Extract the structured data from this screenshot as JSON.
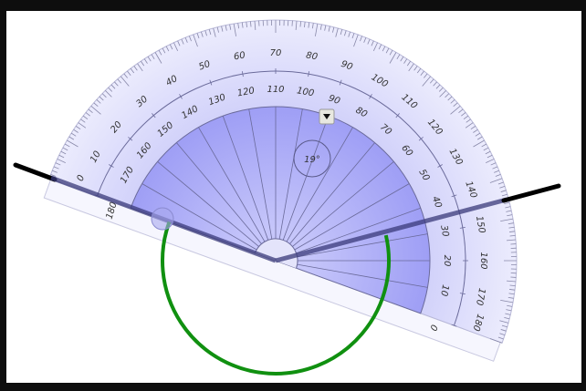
{
  "protractor": {
    "outer_labels": [
      "0",
      "10",
      "20",
      "30",
      "40",
      "50",
      "60",
      "70",
      "80",
      "90",
      "100",
      "110",
      "120",
      "130",
      "140",
      "150",
      "160",
      "170",
      "180"
    ],
    "inner_labels": [
      "0",
      "10",
      "20",
      "30",
      "40",
      "50",
      "60",
      "70",
      "80",
      "90",
      "100",
      "110",
      "120",
      "130",
      "140",
      "150",
      "160",
      "170",
      "180"
    ],
    "angle_readout": "19°",
    "dropdown_icon": "triangle-down-icon"
  },
  "colors": {
    "protractor_light": "#dcdcfb",
    "protractor_inner": "#a9a9f7",
    "arm": "#000000",
    "arm_inside": "#3a3a7a",
    "angle_arc": "#109010"
  }
}
